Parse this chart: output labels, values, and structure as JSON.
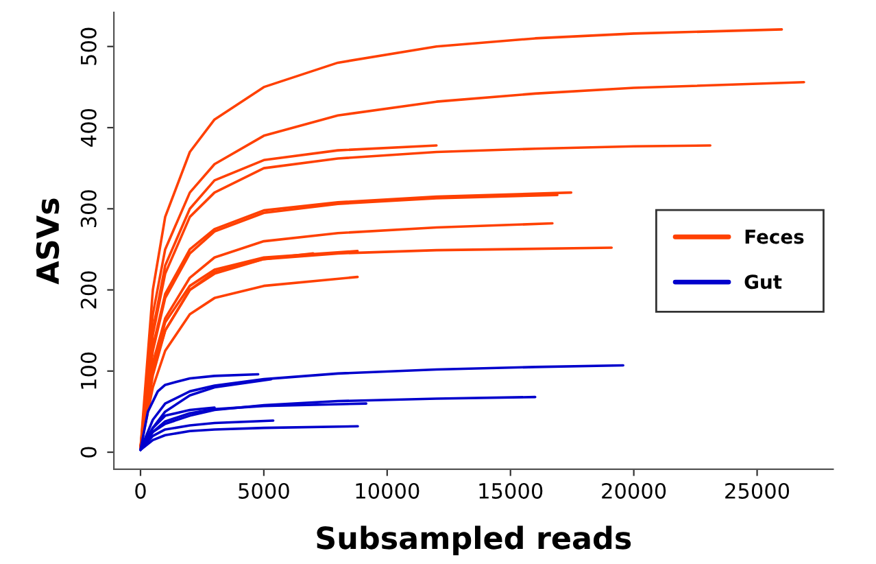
{
  "chart_data": {
    "type": "line",
    "xlabel": "Subsampled reads",
    "ylabel": "ASVs",
    "xlim": [
      -1080,
      28080
    ],
    "ylim": [
      -21,
      542
    ],
    "xticks": [
      0,
      5000,
      10000,
      15000,
      20000,
      25000
    ],
    "yticks": [
      0,
      100,
      200,
      300,
      400,
      500
    ],
    "legend": "right",
    "grid": false,
    "series": [
      {
        "name": "Feces",
        "color": "#ff4000",
        "x": [
          0,
          500,
          1000,
          2000,
          3000,
          5000,
          8000,
          12000,
          16000,
          20000,
          26000
        ],
        "values": [
          5,
          200,
          290,
          370,
          410,
          450,
          480,
          500,
          510,
          516,
          521
        ]
      },
      {
        "color": "#ff4000",
        "x": [
          0,
          500,
          1000,
          2000,
          3000,
          5000,
          8000,
          12000,
          16000,
          20000,
          26900
        ],
        "values": [
          5,
          170,
          250,
          320,
          355,
          390,
          415,
          432,
          442,
          449,
          456
        ]
      },
      {
        "color": "#ff4000",
        "x": [
          0,
          500,
          1000,
          2000,
          3000,
          5000,
          8000,
          12000
        ],
        "values": [
          5,
          150,
          230,
          300,
          335,
          360,
          372,
          378
        ]
      },
      {
        "color": "#ff4000",
        "x": [
          0,
          500,
          1000,
          2000,
          3000,
          5000,
          8000,
          12000,
          16000,
          20000,
          23100
        ],
        "values": [
          5,
          145,
          220,
          290,
          320,
          350,
          362,
          370,
          374,
          377,
          378
        ]
      },
      {
        "color": "#ff4000",
        "x": [
          0,
          500,
          1000,
          2000,
          3000,
          5000,
          8000,
          12000,
          17460
        ],
        "values": [
          5,
          130,
          195,
          250,
          275,
          298,
          308,
          315,
          320
        ]
      },
      {
        "color": "#ff4000",
        "x": [
          0,
          500,
          1000,
          2000,
          3000,
          5000,
          8000,
          12000,
          16900
        ],
        "values": [
          5,
          125,
          190,
          245,
          272,
          295,
          306,
          313,
          317
        ]
      },
      {
        "color": "#ff4000",
        "x": [
          0,
          500,
          1000,
          2000,
          3000,
          5000,
          8000,
          12000,
          16700
        ],
        "values": [
          5,
          110,
          165,
          215,
          240,
          260,
          270,
          277,
          282
        ]
      },
      {
        "color": "#ff4000",
        "x": [
          0,
          500,
          1000,
          2000,
          3000,
          5000,
          8000,
          12000,
          19100
        ],
        "values": [
          5,
          100,
          150,
          200,
          220,
          238,
          245,
          249,
          252
        ]
      },
      {
        "color": "#ff4000",
        "x": [
          0,
          500,
          1000,
          2000,
          3000,
          5000,
          8800
        ],
        "values": [
          5,
          105,
          160,
          205,
          225,
          240,
          248
        ]
      },
      {
        "color": "#ff4000",
        "x": [
          0,
          500,
          1000,
          2000,
          3000,
          5000,
          7000
        ],
        "values": [
          5,
          95,
          150,
          200,
          222,
          238,
          245
        ]
      },
      {
        "color": "#ff4000",
        "x": [
          0,
          500,
          1000,
          2000,
          3000,
          5000,
          8800
        ],
        "values": [
          5,
          80,
          125,
          170,
          190,
          205,
          216
        ]
      },
      {
        "name": "Gut",
        "color": "#0000cc",
        "x": [
          0,
          500,
          1000,
          2000,
          3000,
          5000,
          8000,
          12000,
          16000,
          19570
        ],
        "values": [
          3,
          40,
          60,
          75,
          82,
          90,
          97,
          102,
          105,
          107
        ]
      },
      {
        "color": "#0000cc",
        "x": [
          0,
          500,
          1000,
          2000,
          3000,
          5000,
          8000,
          12000,
          16000
        ],
        "values": [
          3,
          25,
          35,
          45,
          52,
          58,
          63,
          66,
          68
        ]
      },
      {
        "color": "#0000cc",
        "x": [
          0,
          300,
          700,
          1000,
          2000,
          3000,
          4770
        ],
        "values": [
          3,
          50,
          75,
          83,
          91,
          94,
          96
        ]
      },
      {
        "color": "#0000cc",
        "x": [
          0,
          500,
          1000,
          2000,
          3000,
          5300
        ],
        "values": [
          3,
          30,
          50,
          70,
          80,
          90
        ]
      },
      {
        "color": "#0000cc",
        "x": [
          0,
          500,
          1000,
          2000,
          3000,
          5000,
          9150
        ],
        "values": [
          3,
          25,
          38,
          48,
          53,
          57,
          60
        ]
      },
      {
        "color": "#0000cc",
        "x": [
          0,
          500,
          1000,
          2000,
          3000,
          5380
        ],
        "values": [
          3,
          20,
          28,
          33,
          36,
          39
        ]
      },
      {
        "color": "#0000cc",
        "x": [
          0,
          500,
          1000,
          2000,
          3000,
          5000,
          8810
        ],
        "values": [
          3,
          15,
          21,
          26,
          28,
          30,
          32
        ]
      },
      {
        "color": "#0000cc",
        "x": [
          0,
          500,
          1000,
          2000,
          3000
        ],
        "values": [
          3,
          30,
          45,
          52,
          55
        ]
      }
    ]
  }
}
